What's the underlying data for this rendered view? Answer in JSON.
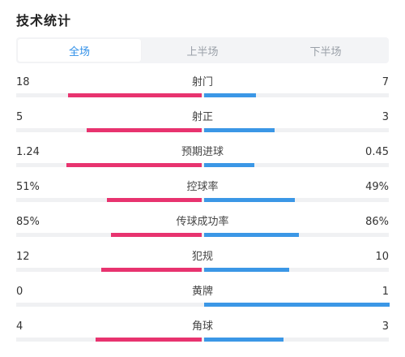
{
  "title": "技术统计",
  "colors": {
    "home": "#e8336f",
    "away": "#3b97e6",
    "tab_active": "#2f8fe8"
  },
  "tabs": [
    {
      "label": "全场",
      "active": true
    },
    {
      "label": "上半场",
      "active": false
    },
    {
      "label": "下半场",
      "active": false
    }
  ],
  "stats": [
    {
      "label": "射门",
      "home": "18",
      "away": "7",
      "home_fraction": 0.72,
      "away_fraction": 0.28
    },
    {
      "label": "射正",
      "home": "5",
      "away": "3",
      "home_fraction": 0.62,
      "away_fraction": 0.38
    },
    {
      "label": "预期进球",
      "home": "1.24",
      "away": "0.45",
      "home_fraction": 0.73,
      "away_fraction": 0.27
    },
    {
      "label": "控球率",
      "home": "51%",
      "away": "49%",
      "home_fraction": 0.51,
      "away_fraction": 0.49
    },
    {
      "label": "传球成功率",
      "home": "85%",
      "away": "86%",
      "home_fraction": 0.49,
      "away_fraction": 0.51
    },
    {
      "label": "犯规",
      "home": "12",
      "away": "10",
      "home_fraction": 0.54,
      "away_fraction": 0.46
    },
    {
      "label": "黄牌",
      "home": "0",
      "away": "1",
      "home_fraction": 0.0,
      "away_fraction": 1.0
    },
    {
      "label": "角球",
      "home": "4",
      "away": "3",
      "home_fraction": 0.57,
      "away_fraction": 0.43
    }
  ]
}
